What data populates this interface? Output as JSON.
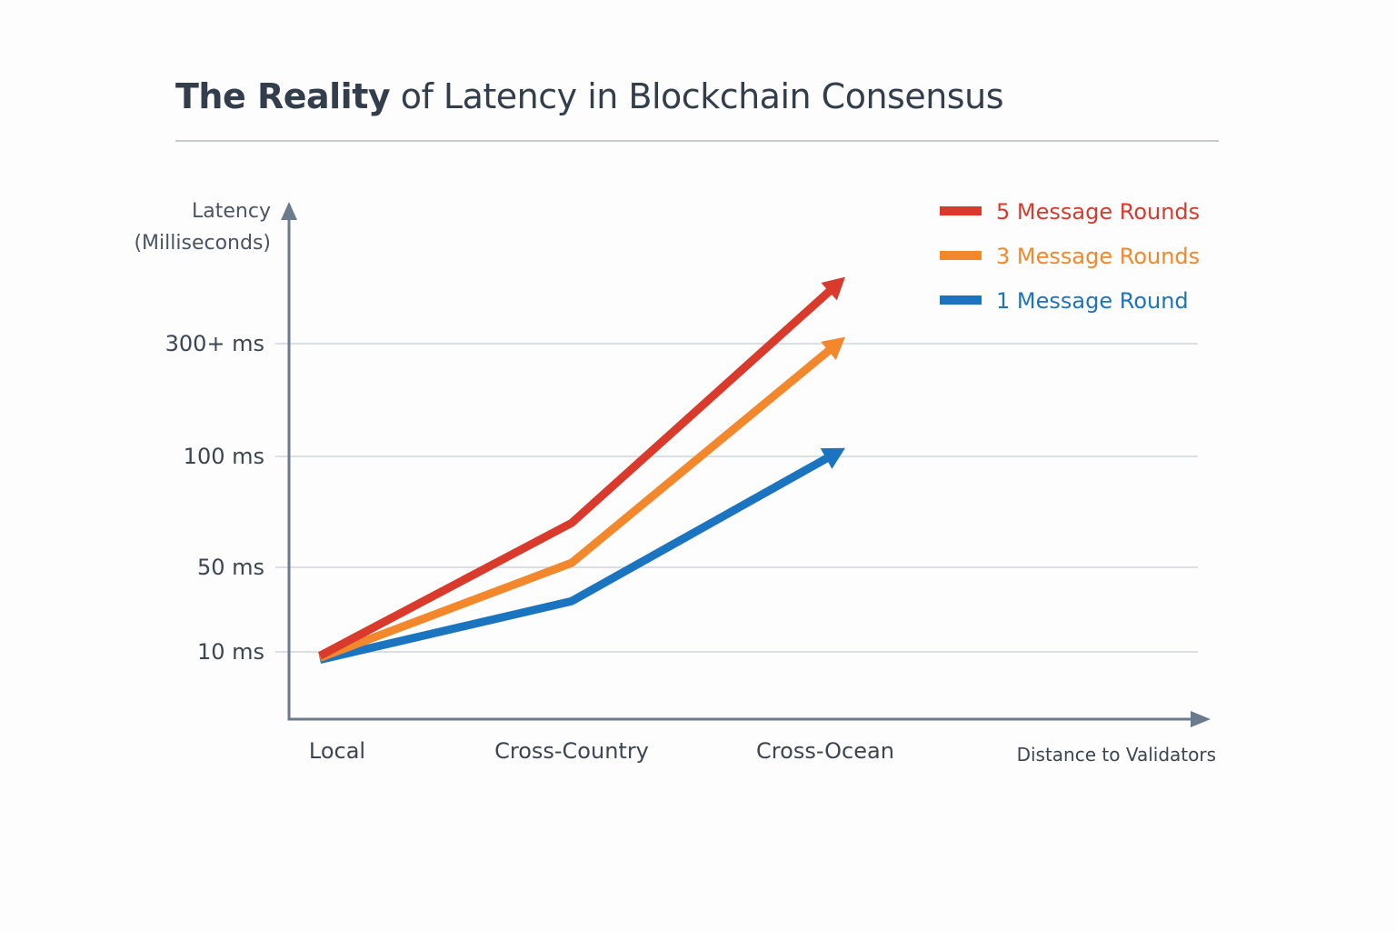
{
  "title": {
    "bold": "The Reality",
    "rest": " of Latency in Blockchain Consensus"
  },
  "chart_data": {
    "type": "line",
    "title": "The Reality of Latency in Blockchain Consensus",
    "ylabel": [
      "Latency",
      "(Milliseconds)"
    ],
    "xlabel": "Distance to Validators",
    "x": [
      "Local",
      "Cross-Country",
      "Cross-Ocean"
    ],
    "y_ticks": [
      {
        "value": 10,
        "label": "10 ms"
      },
      {
        "value": 50,
        "label": "50 ms"
      },
      {
        "value": 100,
        "label": "100 ms"
      },
      {
        "value": 300,
        "label": "300+ ms"
      }
    ],
    "y_scale": "non-linear (tick-based)",
    "grid": "horizontal",
    "legend_position": "top-right",
    "series": [
      {
        "name": "5 Message Rounds",
        "color": "#d93a2b",
        "values": [
          9,
          70,
          400
        ],
        "end_arrow": true
      },
      {
        "name": "3 Message Rounds",
        "color": "#f2872c",
        "values": [
          8.5,
          52,
          310
        ],
        "end_arrow": true
      },
      {
        "name": "1 Message Round",
        "color": "#1b74c0",
        "values": [
          8,
          34,
          115
        ],
        "end_arrow": true
      }
    ]
  },
  "colors": {
    "axis": "#6b7a8c",
    "grid": "#d0d4da",
    "text": "#3c4552"
  }
}
